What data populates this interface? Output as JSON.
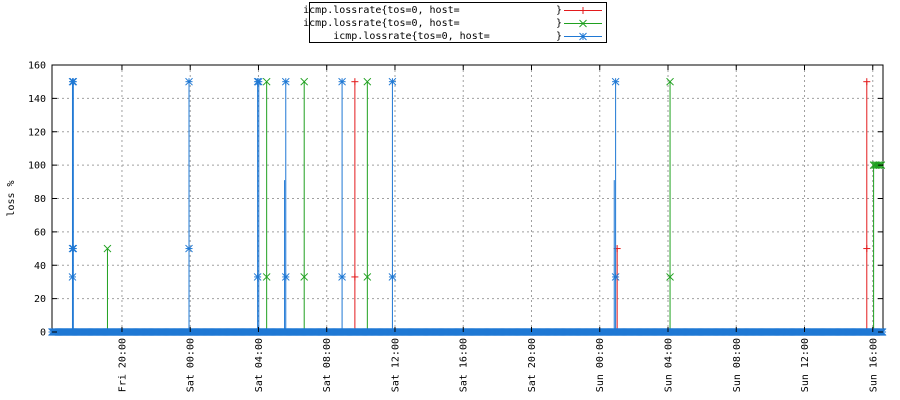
{
  "chart_data": {
    "type": "line",
    "title": "",
    "xlabel": "",
    "ylabel": "loss %",
    "ylim": [
      0,
      160
    ],
    "yticks": [
      0,
      20,
      40,
      60,
      80,
      100,
      120,
      140,
      160
    ],
    "xlim_hours": [
      15.9,
      64.6
    ],
    "x_ticks": [
      {
        "label": "Fri 20:00",
        "hour": 20
      },
      {
        "label": "Sat 00:00",
        "hour": 24
      },
      {
        "label": "Sat 04:00",
        "hour": 28
      },
      {
        "label": "Sat 08:00",
        "hour": 32
      },
      {
        "label": "Sat 12:00",
        "hour": 36
      },
      {
        "label": "Sat 16:00",
        "hour": 40
      },
      {
        "label": "Sat 20:00",
        "hour": 44
      },
      {
        "label": "Sun 00:00",
        "hour": 48
      },
      {
        "label": "Sun 04:00",
        "hour": 52
      },
      {
        "label": "Sun 08:00",
        "hour": 56
      },
      {
        "label": "Sun 12:00",
        "hour": 60
      },
      {
        "label": "Sun 16:00",
        "hour": 64
      }
    ],
    "grid": true,
    "legend_position": "top-center",
    "baseline": 0,
    "series": [
      {
        "name": "icmp.lossrate{tos=0, host=                }",
        "color": "#e31a1c",
        "marker": "plus",
        "spikes": [
          {
            "x": 33.65,
            "peaks": [
              150,
              33
            ]
          },
          {
            "x": 49.02,
            "peaks": [
              50
            ]
          },
          {
            "x": 63.65,
            "peaks": [
              150,
              50
            ]
          }
        ],
        "tail": null
      },
      {
        "name": "icmp.lossrate{tos=0, host=                }",
        "color": "#1fa01f",
        "marker": "x",
        "spikes": [
          {
            "x": 19.15,
            "peaks": [
              50
            ]
          },
          {
            "x": 28.48,
            "peaks": [
              150,
              33
            ]
          },
          {
            "x": 30.68,
            "peaks": [
              150,
              33
            ]
          },
          {
            "x": 34.38,
            "peaks": [
              150,
              33
            ]
          },
          {
            "x": 52.12,
            "peaks": [
              150,
              33
            ]
          }
        ],
        "tail": {
          "x_start": 64.05,
          "x_end": 64.55,
          "value": 100
        }
      },
      {
        "name": "icmp.lossrate{tos=0, host=           }",
        "color": "#1f78d4",
        "marker": "star",
        "spikes": [
          {
            "x": 17.1,
            "peaks": [
              150,
              50,
              33
            ]
          },
          {
            "x": 17.15,
            "peaks": [
              150,
              50
            ]
          },
          {
            "x": 23.93,
            "peaks": [
              150,
              50
            ]
          },
          {
            "x": 27.95,
            "peaks": [
              150,
              33
            ]
          },
          {
            "x": 28.02,
            "peaks": [
              150
            ]
          },
          {
            "x": 29.6,
            "peaks": [
              150,
              33
            ]
          },
          {
            "x": 29.53,
            "peaks": [
              91
            ]
          },
          {
            "x": 32.9,
            "peaks": [
              150,
              33
            ]
          },
          {
            "x": 35.85,
            "peaks": [
              150,
              33
            ]
          },
          {
            "x": 48.93,
            "peaks": [
              150,
              33
            ]
          },
          {
            "x": 48.85,
            "peaks": [
              91
            ]
          }
        ],
        "tail": null
      }
    ]
  }
}
